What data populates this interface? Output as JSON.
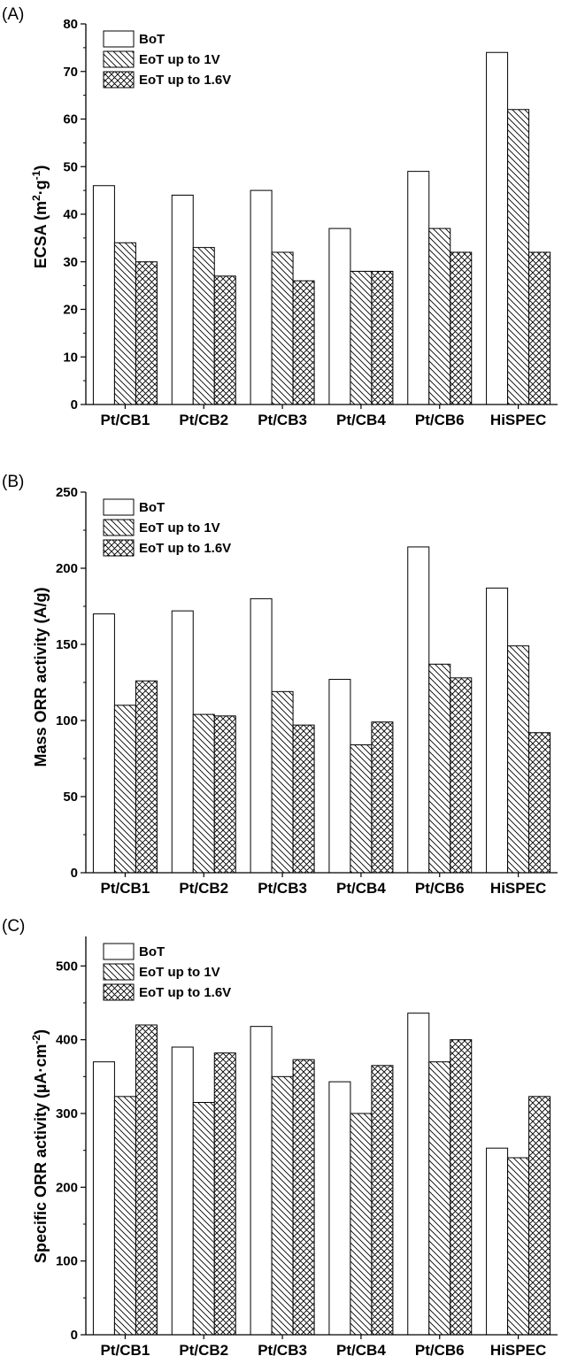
{
  "colors": {
    "stroke": "#000000",
    "background": "#ffffff"
  },
  "chart_data": [
    {
      "type": "bar",
      "panel_label": "(A)",
      "ylabel": "ECSA (m²·g⁻¹)",
      "ylabel_parts": {
        "base": "ECSA (m",
        "sup1": "2",
        "mid": "·g",
        "sup2": "-1",
        "end": ")"
      },
      "ylim": [
        0,
        80
      ],
      "yticks": [
        0,
        10,
        20,
        30,
        40,
        50,
        60,
        70,
        80
      ],
      "categories": [
        "Pt/CB1",
        "Pt/CB2",
        "Pt/CB3",
        "Pt/CB4",
        "Pt/CB6",
        "HiSPEC"
      ],
      "legend_position": "top-left",
      "series": [
        {
          "name": "BoT",
          "pattern": "none",
          "values": [
            46,
            44,
            45,
            37,
            49,
            74
          ]
        },
        {
          "name": "EoT up to 1V",
          "pattern": "diagonal-hatch",
          "values": [
            34,
            33,
            32,
            28,
            37,
            62
          ]
        },
        {
          "name": "EoT up to 1.6V",
          "pattern": "cross-hatch",
          "values": [
            30,
            27,
            26,
            28,
            32,
            32
          ]
        }
      ]
    },
    {
      "type": "bar",
      "panel_label": "(B)",
      "ylabel": "Mass ORR activity (A/g)",
      "ylabel_parts": {
        "base": "Mass ORR activity (A/g)"
      },
      "ylim": [
        0,
        250
      ],
      "yticks": [
        0,
        50,
        100,
        150,
        200,
        250
      ],
      "categories": [
        "Pt/CB1",
        "Pt/CB2",
        "Pt/CB3",
        "Pt/CB4",
        "Pt/CB6",
        "HiSPEC"
      ],
      "legend_position": "top-left",
      "series": [
        {
          "name": "BoT",
          "pattern": "none",
          "values": [
            170,
            172,
            180,
            127,
            214,
            187
          ]
        },
        {
          "name": "EoT up to 1V",
          "pattern": "diagonal-hatch",
          "values": [
            110,
            104,
            119,
            84,
            137,
            149
          ]
        },
        {
          "name": "EoT up to 1.6V",
          "pattern": "cross-hatch",
          "values": [
            126,
            103,
            97,
            99,
            128,
            92
          ]
        }
      ]
    },
    {
      "type": "bar",
      "panel_label": "(C)",
      "ylabel": "Specific ORR activity (µA·cm⁻²)",
      "ylabel_parts": {
        "base": "Specific ORR activity (µA·cm",
        "sup1": "-2",
        "end": ")"
      },
      "ylim": [
        0,
        540
      ],
      "yticks": [
        0,
        100,
        200,
        300,
        400,
        500
      ],
      "categories": [
        "Pt/CB1",
        "Pt/CB2",
        "Pt/CB3",
        "Pt/CB4",
        "Pt/CB6",
        "HiSPEC"
      ],
      "legend_position": "top-left",
      "series": [
        {
          "name": "BoT",
          "pattern": "none",
          "values": [
            370,
            390,
            418,
            343,
            436,
            253
          ]
        },
        {
          "name": "EoT up to 1V",
          "pattern": "diagonal-hatch",
          "values": [
            323,
            315,
            350,
            300,
            370,
            240
          ]
        },
        {
          "name": "EoT up to 1.6V",
          "pattern": "cross-hatch",
          "values": [
            420,
            382,
            373,
            365,
            400,
            323
          ]
        }
      ]
    }
  ]
}
